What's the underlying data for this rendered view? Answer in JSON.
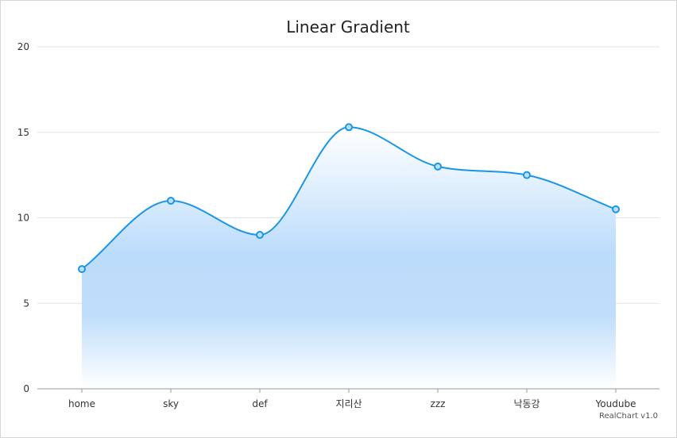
{
  "chart_data": {
    "type": "area",
    "title": "Linear Gradient",
    "categories": [
      "home",
      "sky",
      "def",
      "지리산",
      "zzz",
      "낙동강",
      "Youdube"
    ],
    "series": [
      {
        "values": [
          7,
          11,
          9,
          15.3,
          13,
          12.5,
          10.5
        ]
      }
    ],
    "ylim": [
      0,
      20
    ],
    "yticks": [
      0,
      5,
      10,
      15,
      20
    ],
    "grid": true,
    "legend": "none",
    "line_color": "#1a96e6",
    "fill_gradient": [
      "#ffffff",
      "#bcdcfb"
    ],
    "curve": "spline",
    "markers": true
  },
  "credit": "RealChart v1.0"
}
